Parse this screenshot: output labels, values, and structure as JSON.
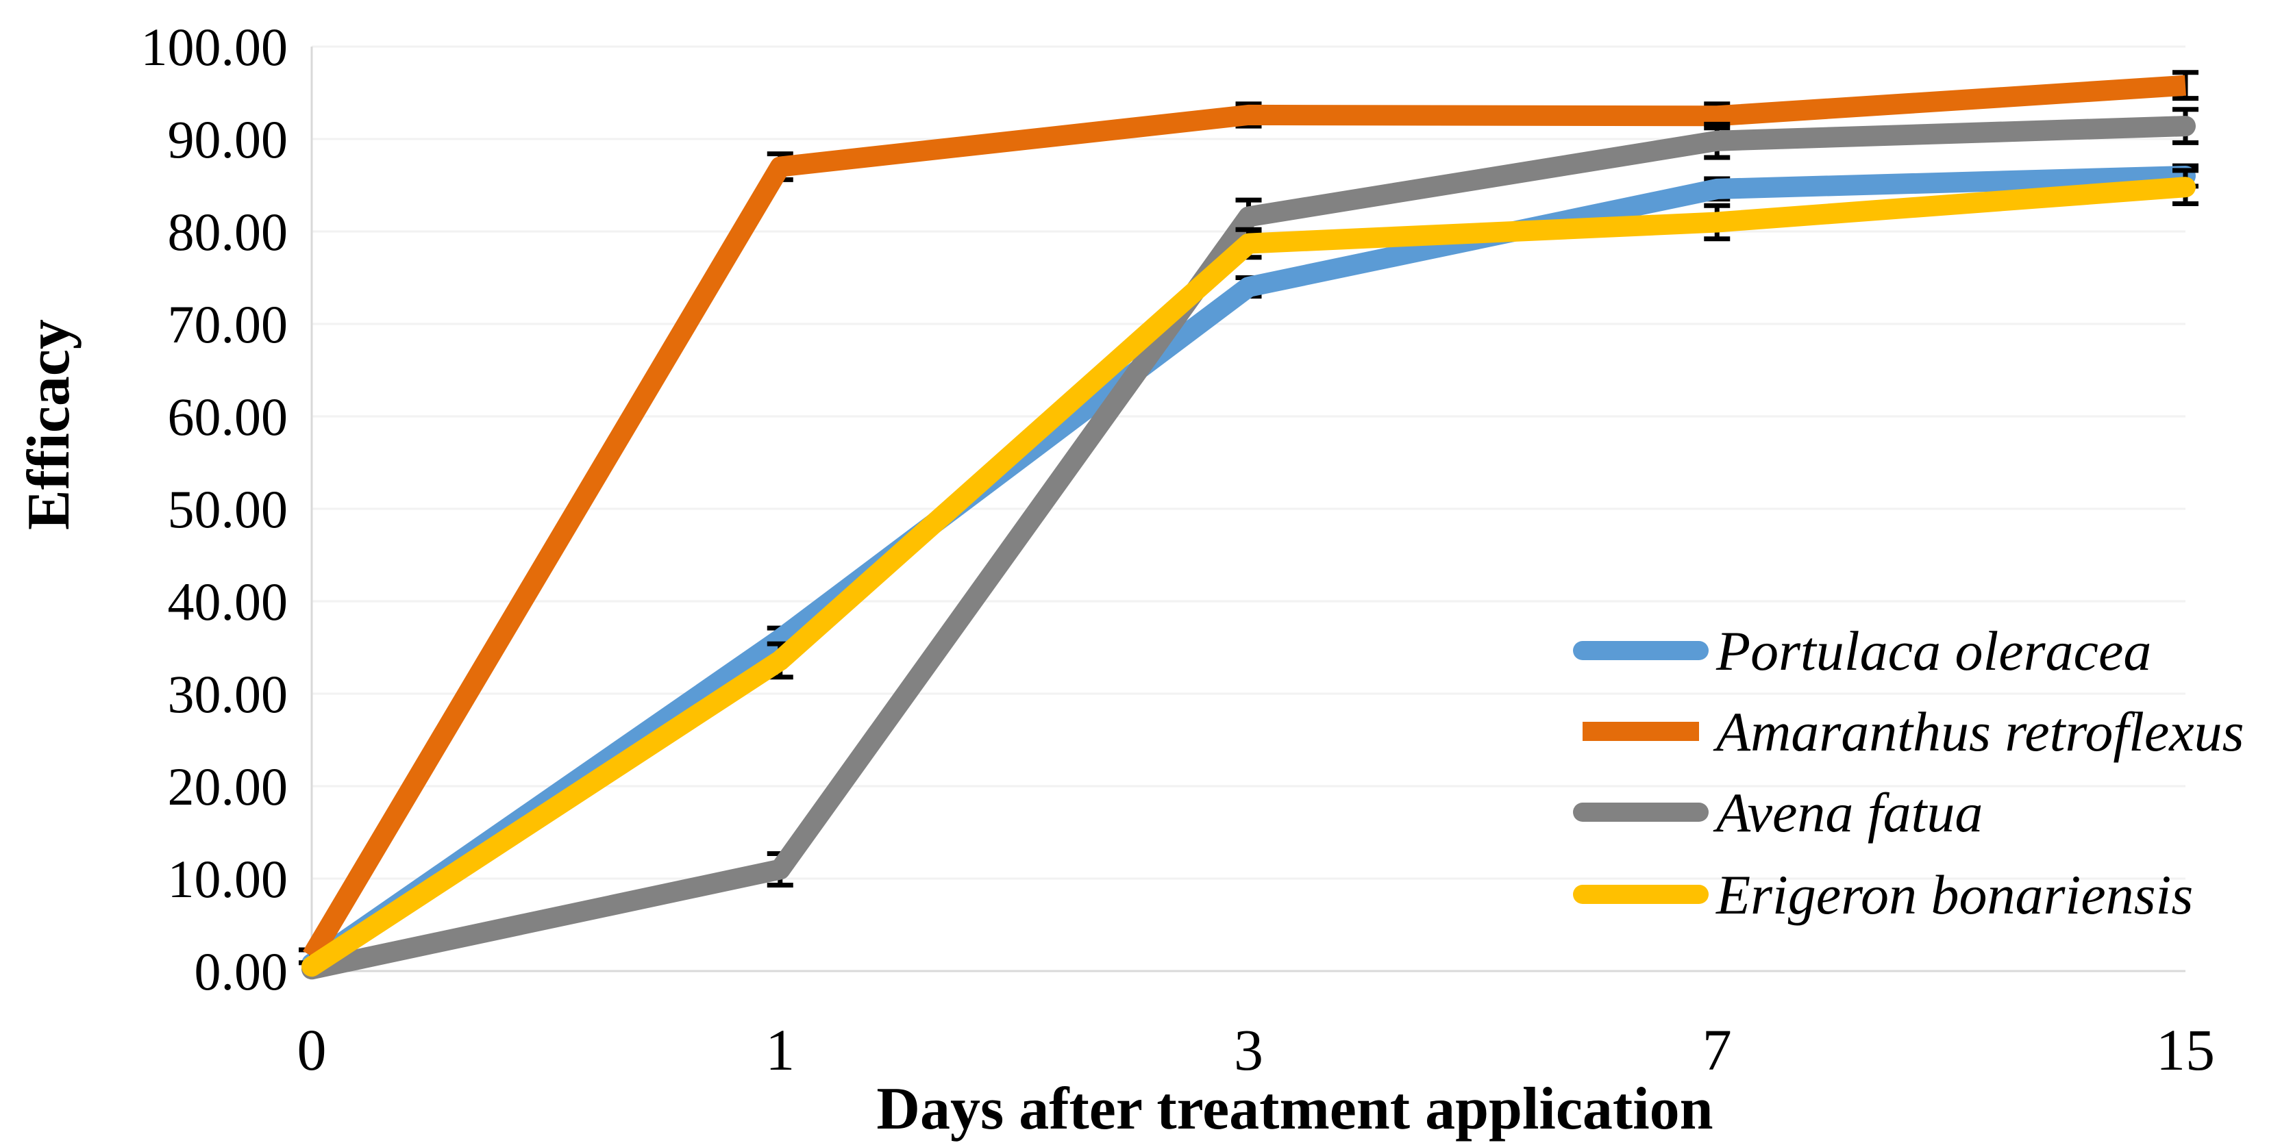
{
  "page": {
    "background_color": "#FFFFFF"
  },
  "chart_data": {
    "type": "line",
    "title": "",
    "xlabel": "Days after treatment application",
    "ylabel": "Efficacy",
    "x_axis_type": "category",
    "categories": [
      "0",
      "1",
      "3",
      "7",
      "15"
    ],
    "x_values": [
      0,
      1,
      3,
      7,
      15
    ],
    "ylim": [
      0,
      100
    ],
    "y_tick_step": 10,
    "y_tick_labels": [
      "0.00",
      "10.00",
      "20.00",
      "30.00",
      "40.00",
      "50.00",
      "60.00",
      "70.00",
      "80.00",
      "90.00",
      "100.00"
    ],
    "grid": "horizontal",
    "gridline_color": "#F2F2F2",
    "axis_line_color": "#D9D9D9",
    "error_bar_color": "#000000",
    "legend_position": "inside-right",
    "series": [
      {
        "name": "Portulaca oleracea",
        "color": "#5B9BD5",
        "line_cap": "round",
        "values": [
          0.8,
          35.9,
          74.0,
          84.6,
          86.0
        ],
        "error_bars": [
          0,
          1.2,
          1.0,
          1.1,
          1.1
        ]
      },
      {
        "name": "Amaranthus retroflexus",
        "color": "#E46C0A",
        "line_cap": "butt",
        "values": [
          1.6,
          87.0,
          92.6,
          92.5,
          95.8
        ],
        "error_bars": [
          0.7,
          1.4,
          1.2,
          1.3,
          1.4
        ]
      },
      {
        "name": "Avena fatua",
        "color": "#828282",
        "line_cap": "round",
        "values": [
          0.2,
          11.0,
          81.6,
          89.8,
          91.4
        ],
        "error_bars": [
          0,
          1.7,
          1.8,
          1.8,
          1.8
        ]
      },
      {
        "name": "Erigeron bonariensis",
        "color": "#FFC000",
        "line_cap": "round",
        "values": [
          0.5,
          33.6,
          78.7,
          81.0,
          84.8
        ],
        "error_bars": [
          0,
          1.8,
          1.5,
          1.8,
          1.8
        ]
      }
    ]
  }
}
